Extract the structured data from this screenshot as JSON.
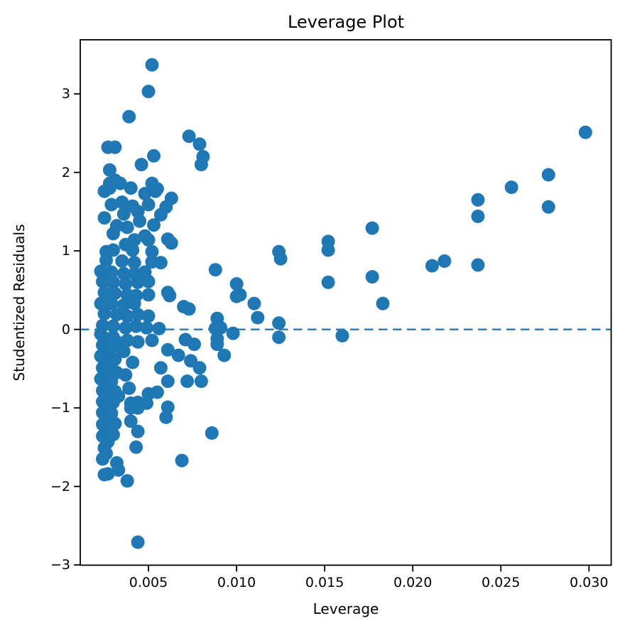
{
  "chart_data": {
    "type": "scatter",
    "title": "Leverage Plot",
    "xlabel": "Leverage",
    "ylabel": "Studentized Residuals",
    "xlim": [
      0.00113,
      0.03126
    ],
    "ylim": [
      -3.003,
      3.689
    ],
    "grid": false,
    "legend": null,
    "marker_color": "#1f77b4",
    "marker_radius": 9.5,
    "axis_color": "#000000",
    "zero_line": {
      "y": 0,
      "style": "dashed",
      "color": "#1f77b4"
    },
    "x_ticks": [
      {
        "v": 0.005,
        "label": "0.005"
      },
      {
        "v": 0.01,
        "label": "0.010"
      },
      {
        "v": 0.015,
        "label": "0.015"
      },
      {
        "v": 0.02,
        "label": "0.020"
      },
      {
        "v": 0.025,
        "label": "0.025"
      },
      {
        "v": 0.03,
        "label": "0.030"
      }
    ],
    "y_ticks": [
      {
        "v": 3,
        "label": "3"
      },
      {
        "v": 2,
        "label": "2"
      },
      {
        "v": 1,
        "label": "1"
      },
      {
        "v": 0,
        "label": "0"
      },
      {
        "v": -1,
        "label": "−1"
      },
      {
        "v": -2,
        "label": "−2"
      },
      {
        "v": -3,
        "label": "−3"
      }
    ],
    "points": [
      [
        0.0052,
        3.37
      ],
      [
        0.005,
        3.03
      ],
      [
        0.0039,
        2.71
      ],
      [
        0.0073,
        2.46
      ],
      [
        0.0079,
        2.36
      ],
      [
        0.0081,
        2.2
      ],
      [
        0.008,
        2.1
      ],
      [
        0.0027,
        2.32
      ],
      [
        0.0031,
        2.32
      ],
      [
        0.0053,
        2.21
      ],
      [
        0.0046,
        2.1
      ],
      [
        0.0028,
        2.03
      ],
      [
        0.0031,
        1.9
      ],
      [
        0.0028,
        1.86
      ],
      [
        0.0034,
        1.86
      ],
      [
        0.0052,
        1.86
      ],
      [
        0.0028,
        1.8
      ],
      [
        0.004,
        1.8
      ],
      [
        0.0055,
        1.79
      ],
      [
        0.0025,
        1.76
      ],
      [
        0.0048,
        1.73
      ],
      [
        0.0054,
        1.76
      ],
      [
        0.0063,
        1.67
      ],
      [
        0.0035,
        1.62
      ],
      [
        0.0029,
        1.59
      ],
      [
        0.0041,
        1.57
      ],
      [
        0.005,
        1.59
      ],
      [
        0.006,
        1.56
      ],
      [
        0.0025,
        1.42
      ],
      [
        0.0036,
        1.47
      ],
      [
        0.0044,
        1.5
      ],
      [
        0.0057,
        1.46
      ],
      [
        0.0045,
        1.38
      ],
      [
        0.0032,
        1.32
      ],
      [
        0.0038,
        1.3
      ],
      [
        0.0053,
        1.33
      ],
      [
        0.003,
        1.22
      ],
      [
        0.0042,
        1.14
      ],
      [
        0.0048,
        1.19
      ],
      [
        0.005,
        1.14
      ],
      [
        0.0061,
        1.15
      ],
      [
        0.0037,
        1.08
      ],
      [
        0.0063,
        1.1
      ],
      [
        0.0026,
        0.99
      ],
      [
        0.003,
        1.01
      ],
      [
        0.0041,
        1.01
      ],
      [
        0.0052,
        0.99
      ],
      [
        0.0026,
        0.88
      ],
      [
        0.0035,
        0.87
      ],
      [
        0.0042,
        0.85
      ],
      [
        0.0052,
        0.86
      ],
      [
        0.0057,
        0.85
      ],
      [
        0.0023,
        0.74
      ],
      [
        0.0029,
        0.73
      ],
      [
        0.0036,
        0.71
      ],
      [
        0.0042,
        0.71
      ],
      [
        0.0048,
        0.73
      ],
      [
        0.0088,
        0.76
      ],
      [
        0.0024,
        0.61
      ],
      [
        0.003,
        0.6
      ],
      [
        0.0037,
        0.58
      ],
      [
        0.0044,
        0.6
      ],
      [
        0.005,
        0.61
      ],
      [
        0.0025,
        0.47
      ],
      [
        0.0031,
        0.46
      ],
      [
        0.0038,
        0.44
      ],
      [
        0.0043,
        0.43
      ],
      [
        0.005,
        0.44
      ],
      [
        0.0061,
        0.47
      ],
      [
        0.0062,
        0.43
      ],
      [
        0.0023,
        0.33
      ],
      [
        0.0029,
        0.33
      ],
      [
        0.0036,
        0.31
      ],
      [
        0.0042,
        0.33
      ],
      [
        0.007,
        0.29
      ],
      [
        0.0073,
        0.26
      ],
      [
        0.0025,
        0.2
      ],
      [
        0.0032,
        0.19
      ],
      [
        0.0038,
        0.17
      ],
      [
        0.0044,
        0.19
      ],
      [
        0.005,
        0.17
      ],
      [
        0.0024,
        0.05
      ],
      [
        0.003,
        0.04
      ],
      [
        0.0037,
        0.02
      ],
      [
        0.0043,
        0.04
      ],
      [
        0.0049,
        0.02
      ],
      [
        0.0056,
        0.01
      ],
      [
        0.0089,
        0.14
      ],
      [
        0.0091,
        0.02
      ],
      [
        0.0088,
        0.01
      ],
      [
        0.0102,
        0.44
      ],
      [
        0.011,
        0.33
      ],
      [
        0.0112,
        0.15
      ],
      [
        0.01,
        0.58
      ],
      [
        0.01,
        0.42
      ],
      [
        0.0098,
        -0.05
      ],
      [
        0.0093,
        -0.33
      ],
      [
        0.0089,
        -0.19
      ],
      [
        0.0089,
        -0.12
      ],
      [
        0.0032,
        -0.16
      ],
      [
        0.0038,
        -0.14
      ],
      [
        0.0044,
        -0.16
      ],
      [
        0.0052,
        -0.14
      ],
      [
        0.0071,
        -0.13
      ],
      [
        0.0076,
        -0.19
      ],
      [
        0.0036,
        -0.28
      ],
      [
        0.0061,
        -0.26
      ],
      [
        0.0041,
        -0.42
      ],
      [
        0.0067,
        -0.33
      ],
      [
        0.0074,
        -0.4
      ],
      [
        0.0032,
        -0.55
      ],
      [
        0.0037,
        -0.58
      ],
      [
        0.0057,
        -0.49
      ],
      [
        0.0079,
        -0.49
      ],
      [
        0.0039,
        -0.75
      ],
      [
        0.0061,
        -0.66
      ],
      [
        0.0072,
        -0.66
      ],
      [
        0.008,
        -0.66
      ],
      [
        0.0033,
        -0.85
      ],
      [
        0.005,
        -0.82
      ],
      [
        0.0055,
        -0.8
      ],
      [
        0.0044,
        -0.93
      ],
      [
        0.0049,
        -0.94
      ],
      [
        0.004,
        -0.94
      ],
      [
        0.0044,
        -1.0
      ],
      [
        0.004,
        -1.0
      ],
      [
        0.0061,
        -0.99
      ],
      [
        0.0023,
        -0.06
      ],
      [
        0.0026,
        -0.12
      ],
      [
        0.0024,
        -0.2
      ],
      [
        0.0027,
        -0.27
      ],
      [
        0.0023,
        -0.34
      ],
      [
        0.0026,
        -0.42
      ],
      [
        0.0024,
        -0.49
      ],
      [
        0.0027,
        -0.56
      ],
      [
        0.0023,
        -0.63
      ],
      [
        0.0026,
        -0.7
      ],
      [
        0.0024,
        -0.78
      ],
      [
        0.0027,
        -0.85
      ],
      [
        0.0024,
        -0.92
      ],
      [
        0.0026,
        -0.99
      ],
      [
        0.0024,
        -1.06
      ],
      [
        0.0027,
        -1.13
      ],
      [
        0.0024,
        -1.21
      ],
      [
        0.0026,
        -1.28
      ],
      [
        0.0024,
        -1.36
      ],
      [
        0.0027,
        -1.43
      ],
      [
        0.0025,
        -1.51
      ],
      [
        0.0026,
        -1.58
      ],
      [
        0.0024,
        -1.65
      ],
      [
        0.003,
        -0.1
      ],
      [
        0.0029,
        -0.24
      ],
      [
        0.0031,
        -0.38
      ],
      [
        0.003,
        -0.52
      ],
      [
        0.0029,
        -0.66
      ],
      [
        0.0031,
        -0.79
      ],
      [
        0.003,
        -0.93
      ],
      [
        0.0029,
        -1.07
      ],
      [
        0.0031,
        -1.2
      ],
      [
        0.003,
        -1.34
      ],
      [
        0.004,
        -1.17
      ],
      [
        0.006,
        -1.12
      ],
      [
        0.0044,
        -1.3
      ],
      [
        0.0086,
        -1.32
      ],
      [
        0.0043,
        -1.5
      ],
      [
        0.0069,
        -1.67
      ],
      [
        0.0032,
        -1.7
      ],
      [
        0.0033,
        -1.79
      ],
      [
        0.0027,
        -1.84
      ],
      [
        0.0025,
        -1.85
      ],
      [
        0.0038,
        -1.93
      ],
      [
        0.0044,
        -2.71
      ],
      [
        0.0124,
        0.99
      ],
      [
        0.0125,
        0.9
      ],
      [
        0.0124,
        0.08
      ],
      [
        0.0124,
        -0.1
      ],
      [
        0.0152,
        1.12
      ],
      [
        0.0152,
        1.01
      ],
      [
        0.0152,
        0.6
      ],
      [
        0.016,
        -0.08
      ],
      [
        0.0177,
        1.29
      ],
      [
        0.0177,
        0.67
      ],
      [
        0.0183,
        0.33
      ],
      [
        0.0211,
        0.81
      ],
      [
        0.0218,
        0.87
      ],
      [
        0.0237,
        1.65
      ],
      [
        0.0237,
        1.44
      ],
      [
        0.0237,
        0.82
      ],
      [
        0.0256,
        1.81
      ],
      [
        0.0277,
        1.97
      ],
      [
        0.0277,
        1.56
      ],
      [
        0.0298,
        2.51
      ]
    ]
  }
}
